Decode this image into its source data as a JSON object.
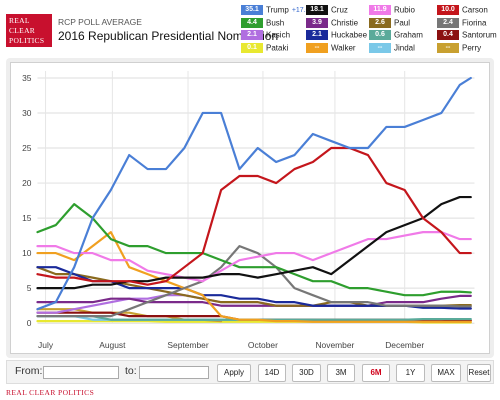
{
  "header": {
    "logo_lines": [
      "REAL",
      "CLEAR",
      "POLITICS"
    ],
    "subtitle": "RCP POLL AVERAGE",
    "title": "2016 Republican Presidential Nomination"
  },
  "legend": [
    {
      "value": "35.1",
      "name": "Trump",
      "change": "+17.0",
      "color": "#4a7fd6"
    },
    {
      "value": "18.1",
      "name": "Cruz",
      "change": "",
      "color": "#111111"
    },
    {
      "value": "11.9",
      "name": "Rubio",
      "change": "",
      "color": "#f07ae8"
    },
    {
      "value": "10.0",
      "name": "Carson",
      "change": "",
      "color": "#c4161c"
    },
    {
      "value": "4.4",
      "name": "Bush",
      "change": "",
      "color": "#2e9e2e"
    },
    {
      "value": "3.9",
      "name": "Christie",
      "change": "",
      "color": "#7a2a8a"
    },
    {
      "value": "2.6",
      "name": "Paul",
      "change": "",
      "color": "#8a6a1e"
    },
    {
      "value": "2.4",
      "name": "Fiorina",
      "change": "",
      "color": "#777777"
    },
    {
      "value": "2.1",
      "name": "Kasich",
      "change": "",
      "color": "#b06ee0"
    },
    {
      "value": "2.1",
      "name": "Huckabee",
      "change": "",
      "color": "#1a2a9a"
    },
    {
      "value": "0.6",
      "name": "Graham",
      "change": "",
      "color": "#5aaa9a"
    },
    {
      "value": "0.4",
      "name": "Santorum",
      "change": "",
      "color": "#8b1010"
    },
    {
      "value": "0.1",
      "name": "Pataki",
      "change": "",
      "color": "#e8e830"
    },
    {
      "value": "--",
      "name": "Walker",
      "change": "",
      "color": "#f0a020"
    },
    {
      "value": "--",
      "name": "Jindal",
      "change": "",
      "color": "#7ac8e8"
    },
    {
      "value": "--",
      "name": "Perry",
      "change": "",
      "color": "#c8a030"
    }
  ],
  "controls": {
    "from_label": "From:",
    "to_label": "to:",
    "from_value": "",
    "to_value": "",
    "apply_label": "Apply",
    "ranges": [
      {
        "label": "14D",
        "active": false
      },
      {
        "label": "30D",
        "active": false
      },
      {
        "label": "3M",
        "active": false
      },
      {
        "label": "6M",
        "active": true
      },
      {
        "label": "1Y",
        "active": false
      },
      {
        "label": "MAX",
        "active": false
      },
      {
        "label": "Reset",
        "active": false
      }
    ]
  },
  "footer": "REAL CLEAR POLITICS",
  "chart_data": {
    "type": "line",
    "title": "2016 Republican Presidential Nomination",
    "xlabel": "",
    "ylabel": "",
    "x_ticks": [
      "July",
      "August",
      "September",
      "October",
      "November",
      "December"
    ],
    "x_tick_positions": [
      0.11,
      1.02,
      2.05,
      3.07,
      4.05,
      5.0
    ],
    "xlim": [
      0,
      5.95
    ],
    "ylim": [
      0,
      36
    ],
    "y_ticks": [
      0,
      5,
      10,
      15,
      20,
      25,
      30,
      35
    ],
    "grid": true,
    "legend_position": "top-right",
    "x": [
      0,
      0.25,
      0.5,
      0.75,
      1,
      1.25,
      1.5,
      1.75,
      2,
      2.25,
      2.5,
      2.75,
      3,
      3.25,
      3.5,
      3.75,
      4,
      4.25,
      4.5,
      4.75,
      5,
      5.25,
      5.5,
      5.75,
      5.9
    ],
    "series": [
      {
        "name": "Trump",
        "color": "#4a7fd6",
        "values": [
          2,
          3,
          8,
          15,
          19,
          24,
          22,
          22,
          25,
          30,
          30,
          22,
          25,
          23,
          24,
          27,
          26,
          25,
          25,
          28,
          28,
          29,
          30,
          34,
          35
        ]
      },
      {
        "name": "Carson",
        "color": "#c4161c",
        "values": [
          7,
          6.5,
          6.5,
          6,
          6,
          6,
          5.5,
          6,
          8,
          10,
          19,
          21,
          21,
          20,
          22,
          23,
          25,
          25,
          24,
          20,
          19,
          15,
          13,
          10,
          10
        ]
      },
      {
        "name": "Cruz",
        "color": "#111111",
        "values": [
          5,
          5,
          5,
          5.5,
          5.5,
          6,
          6,
          6.5,
          6.5,
          6.5,
          7,
          7,
          6.5,
          7,
          7.5,
          8,
          7,
          9,
          11,
          13,
          14,
          15,
          17,
          18,
          18
        ]
      },
      {
        "name": "Rubio",
        "color": "#f07ae8",
        "values": [
          11,
          11,
          10,
          10,
          9,
          9,
          7.5,
          7,
          6.5,
          6,
          7.5,
          9,
          9.5,
          10,
          10,
          9,
          10,
          11,
          12,
          12,
          12.5,
          13,
          13,
          12,
          12
        ]
      },
      {
        "name": "Bush",
        "color": "#2e9e2e",
        "values": [
          13,
          14,
          17,
          15,
          12,
          11,
          11,
          10,
          10,
          10,
          9,
          8,
          8,
          8,
          7,
          6,
          6,
          5,
          5,
          4.5,
          4,
          4,
          4.5,
          4.5,
          4.4
        ]
      },
      {
        "name": "Fiorina",
        "color": "#777777",
        "values": [
          1,
          1,
          1,
          1,
          1,
          2,
          3,
          4,
          5,
          6,
          8,
          11,
          10,
          8,
          5,
          4,
          3,
          3,
          3,
          2.5,
          2.5,
          2.5,
          2.5,
          2.4,
          2.4
        ]
      },
      {
        "name": "Walker",
        "color": "#f0a020",
        "values": [
          10,
          10,
          9,
          11,
          13,
          8,
          7,
          6,
          5,
          4,
          1,
          0.5,
          0.5,
          0.3,
          0.3,
          0.2,
          0.2,
          0.2,
          0.2,
          0.2,
          0.2,
          0.2,
          0.2,
          0.2,
          0.2
        ]
      },
      {
        "name": "Huckabee",
        "color": "#1a2a9a",
        "values": [
          8,
          8,
          7,
          6,
          6,
          5,
          5,
          5,
          5,
          4,
          4,
          3.5,
          3.5,
          3,
          3,
          2.5,
          2.5,
          2.5,
          2.5,
          2.5,
          2.5,
          2.2,
          2.2,
          2.1,
          2.1
        ]
      },
      {
        "name": "Paul",
        "color": "#8a6a1e",
        "values": [
          8,
          7,
          7,
          6.5,
          6,
          5.5,
          5,
          4.5,
          4,
          3.5,
          3,
          3,
          3,
          2.5,
          2.5,
          2.5,
          3,
          3,
          2.5,
          2.5,
          2.5,
          2.5,
          2.5,
          2.6,
          2.6
        ]
      },
      {
        "name": "Christie",
        "color": "#7a2a8a",
        "values": [
          3,
          3,
          3,
          3,
          3.5,
          3.5,
          3,
          3,
          3,
          3,
          2.5,
          2.5,
          2.5,
          2.5,
          2.5,
          2.5,
          2.5,
          2.5,
          2.5,
          3,
          3,
          3,
          3.5,
          3.9,
          3.9
        ]
      },
      {
        "name": "Kasich",
        "color": "#b06ee0",
        "values": [
          1.5,
          1.5,
          2,
          2.5,
          3,
          3.5,
          3.5,
          4,
          4,
          3.5,
          3,
          3,
          3,
          2.5,
          2.5,
          2.5,
          2.5,
          2.5,
          2.5,
          2.5,
          2.5,
          2.3,
          2.2,
          2.1,
          2.1
        ]
      },
      {
        "name": "Graham",
        "color": "#5aaa9a",
        "values": [
          1,
          1,
          1,
          1,
          0.5,
          0.5,
          0.5,
          0.5,
          0.5,
          0.5,
          0.5,
          0.5,
          0.5,
          0.5,
          0.5,
          0.5,
          0.5,
          0.5,
          0.5,
          0.5,
          0.5,
          0.6,
          0.6,
          0.6,
          0.6
        ]
      },
      {
        "name": "Santorum",
        "color": "#8b1010",
        "values": [
          1.5,
          1.5,
          1.5,
          1.5,
          1.5,
          1,
          1,
          1,
          1,
          1,
          1,
          0.5,
          0.5,
          0.5,
          0.5,
          0.5,
          0.5,
          0.5,
          0.5,
          0.5,
          0.5,
          0.5,
          0.5,
          0.4,
          0.4
        ]
      },
      {
        "name": "Jindal",
        "color": "#7ac8e8",
        "values": [
          1,
          1,
          1,
          0.5,
          0.5,
          0.5,
          0.5,
          0.5,
          0.5,
          0.5,
          0.5,
          0.5,
          0.5,
          0.5,
          0.5,
          0.5,
          0.3,
          0.3,
          null,
          null,
          null,
          null,
          null,
          null,
          null
        ]
      },
      {
        "name": "Perry",
        "color": "#c8a030",
        "values": [
          2,
          2,
          2,
          1.5,
          1.5,
          1.5,
          1,
          1,
          0.5,
          0.5,
          0.3,
          null,
          null,
          null,
          null,
          null,
          null,
          null,
          null,
          null,
          null,
          null,
          null,
          null,
          null
        ]
      },
      {
        "name": "Pataki",
        "color": "#e8e830",
        "values": [
          0.3,
          0.3,
          0.3,
          0.3,
          0.3,
          0.3,
          0.3,
          0.2,
          0.2,
          0.2,
          0.2,
          0.2,
          0.2,
          0.2,
          0.2,
          0.2,
          0.2,
          0.2,
          0.2,
          0.2,
          0.2,
          0.1,
          0.1,
          0.1,
          0.1
        ]
      }
    ]
  }
}
